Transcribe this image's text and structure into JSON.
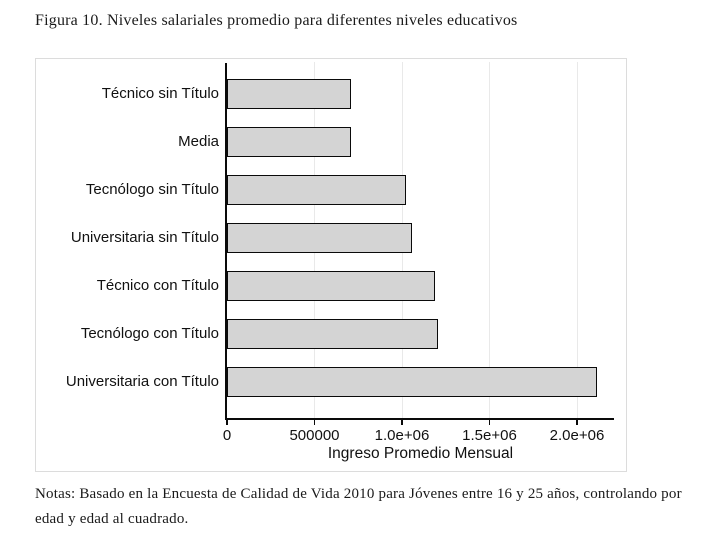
{
  "figure": {
    "title": "Figura 10. Niveles salariales promedio para diferentes niveles educativos",
    "notes": "Notas: Basado en la Encuesta de Calidad de Vida 2010 para Jóvenes entre 16 y 25 años, controlando por edad y edad al cuadrado."
  },
  "chart_data": {
    "type": "bar",
    "orientation": "horizontal",
    "categories": [
      "Técnico sin Título",
      "Media",
      "Tecnólogo sin Título",
      "Universitaria sin Título",
      "Técnico con Título",
      "Tecnólogo con Título",
      "Universitaria con Título"
    ],
    "values": [
      710000,
      708000,
      1022000,
      1058000,
      1190000,
      1208000,
      2114000
    ],
    "title": "",
    "xlabel": "Ingreso Promedio Mensual",
    "ylabel": "",
    "xlim": [
      0,
      2200000
    ],
    "xticks": [
      {
        "value": 0,
        "label": "0"
      },
      {
        "value": 500000,
        "label": "500000"
      },
      {
        "value": 1000000,
        "label": "1.0e+06"
      },
      {
        "value": 1500000,
        "label": "1.5e+06"
      },
      {
        "value": 2000000,
        "label": "2.0e+06"
      }
    ],
    "grid": "vertical-gridlines-on",
    "legend": "none",
    "colors": {
      "bar_fill": "#d4d4d4",
      "bar_border": "#0a0a0a",
      "gridline": "#e9e9e9",
      "axis": "#0a0a0a",
      "panel_border": "#dcdcdc",
      "text": "#111111"
    }
  }
}
